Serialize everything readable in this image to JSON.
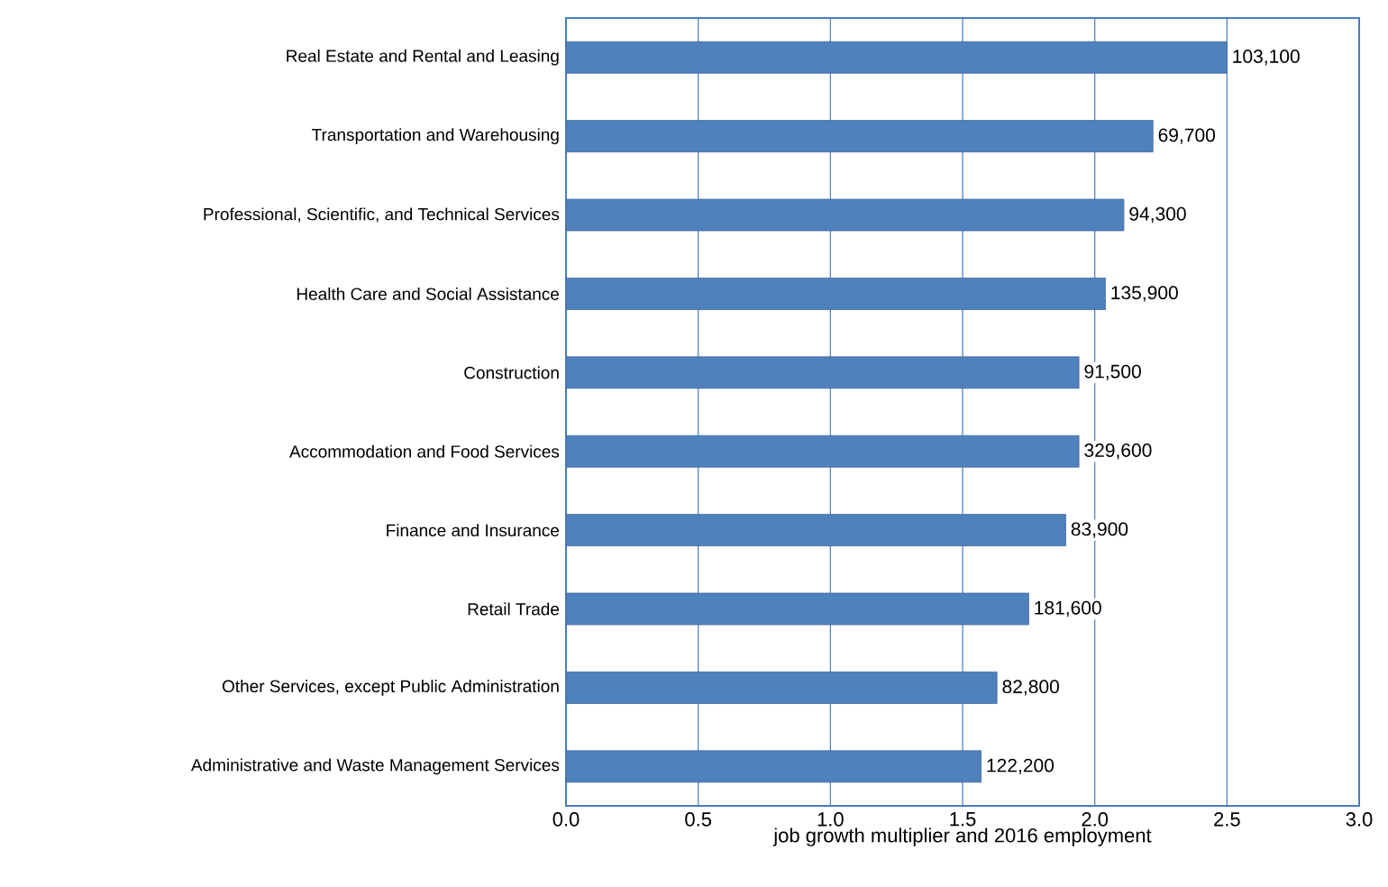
{
  "chart_data": {
    "type": "bar",
    "orientation": "horizontal",
    "xlabel": "job growth multiplier and 2016 employment",
    "categories": [
      "Real Estate and Rental and Leasing",
      "Transportation and Warehousing",
      "Professional, Scientific, and Technical Services",
      "Health Care and Social Assistance",
      "Construction",
      "Accommodation and Food Services",
      "Finance and Insurance",
      "Retail Trade",
      "Other Services, except Public Administration",
      "Administrative and Waste Management Services"
    ],
    "values": [
      2.5,
      2.22,
      2.11,
      2.04,
      1.94,
      1.94,
      1.89,
      1.75,
      1.63,
      1.57
    ],
    "annotations": [
      {
        "text": "103,100",
        "x": 2.5,
        "y": "Real Estate and Rental and Leasing"
      },
      {
        "text": "69,700",
        "x": 2.22,
        "y": "Transportation and Warehousing"
      },
      {
        "text": "94,300",
        "x": 2.11,
        "y": "Professional, Scientific, and Technical Services"
      },
      {
        "text": "135,900",
        "x": 2.04,
        "y": "Health Care and Social Assistance"
      },
      {
        "text": "91,500",
        "x": 1.94,
        "y": "Construction"
      },
      {
        "text": "329,600",
        "x": 1.94,
        "y": "Accommodation and Food Services"
      },
      {
        "text": "83,900",
        "x": 1.89,
        "y": "Finance and Insurance"
      },
      {
        "text": "181,600",
        "x": 1.75,
        "y": "Retail Trade"
      },
      {
        "text": "82,800",
        "x": 1.63,
        "y": "Other Services, except Public Administration"
      },
      {
        "text": "122,200",
        "x": 1.57,
        "y": "Administrative and Waste Management Services"
      }
    ],
    "color": "#4f81bd",
    "xlim": [
      0,
      3
    ],
    "xticks": [
      {
        "value": 0,
        "label": "0.0"
      },
      {
        "value": 0.5,
        "label": "0.5"
      },
      {
        "value": 1,
        "label": "1.0"
      },
      {
        "value": 1.5,
        "label": "1.5"
      },
      {
        "value": 2,
        "label": "2.0"
      },
      {
        "value": 2.5,
        "label": "2.5"
      },
      {
        "value": 3,
        "label": "3.0"
      }
    ],
    "grid": "x"
  }
}
